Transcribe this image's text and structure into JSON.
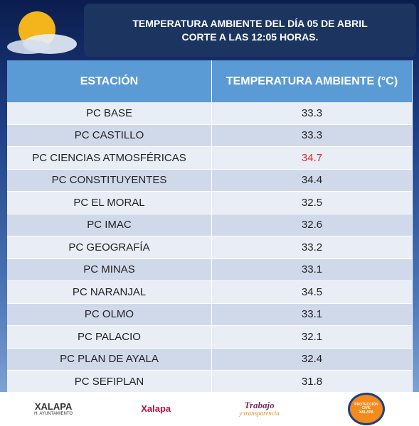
{
  "header": {
    "title_lines": [
      "TEMPERATURA AMBIENTE DEL DÍA 05 DE ABRIL",
      "CORTE A LAS 12:05 HORAS."
    ]
  },
  "table": {
    "columns": [
      "ESTACIÓN",
      "TEMPERATURA AMBIENTE (°C)"
    ],
    "rows": [
      [
        "PC BASE",
        "33.3"
      ],
      [
        "PC CASTILLO",
        "33.3"
      ],
      [
        "PC CIENCIAS ATMOSFÉRICAS",
        "34.7"
      ],
      [
        "PC CONSTITUYENTES",
        "34.4"
      ],
      [
        "PC EL MORAL",
        "32.5"
      ],
      [
        "PC IMAC",
        "32.6"
      ],
      [
        "PC GEOGRAFÍA",
        "33.2"
      ],
      [
        "PC MINAS",
        "33.1"
      ],
      [
        "PC NARANJAL",
        "34.5"
      ],
      [
        "PC OLMO",
        "33.1"
      ],
      [
        "PC PALACIO",
        "32.1"
      ],
      [
        "PC PLAN DE AYALA",
        "32.4"
      ],
      [
        "PC SEFIPLAN",
        "31.8"
      ]
    ],
    "highlight_row": 2,
    "highlight_color": "#e3262b"
  },
  "footer": {
    "logos": [
      "XALAPA",
      "H. AYUNTAMIENTO",
      "Xalapa",
      "Trabajo",
      "y transparencia",
      "PROTECCIÓN CIVIL",
      "XALAPA"
    ]
  }
}
